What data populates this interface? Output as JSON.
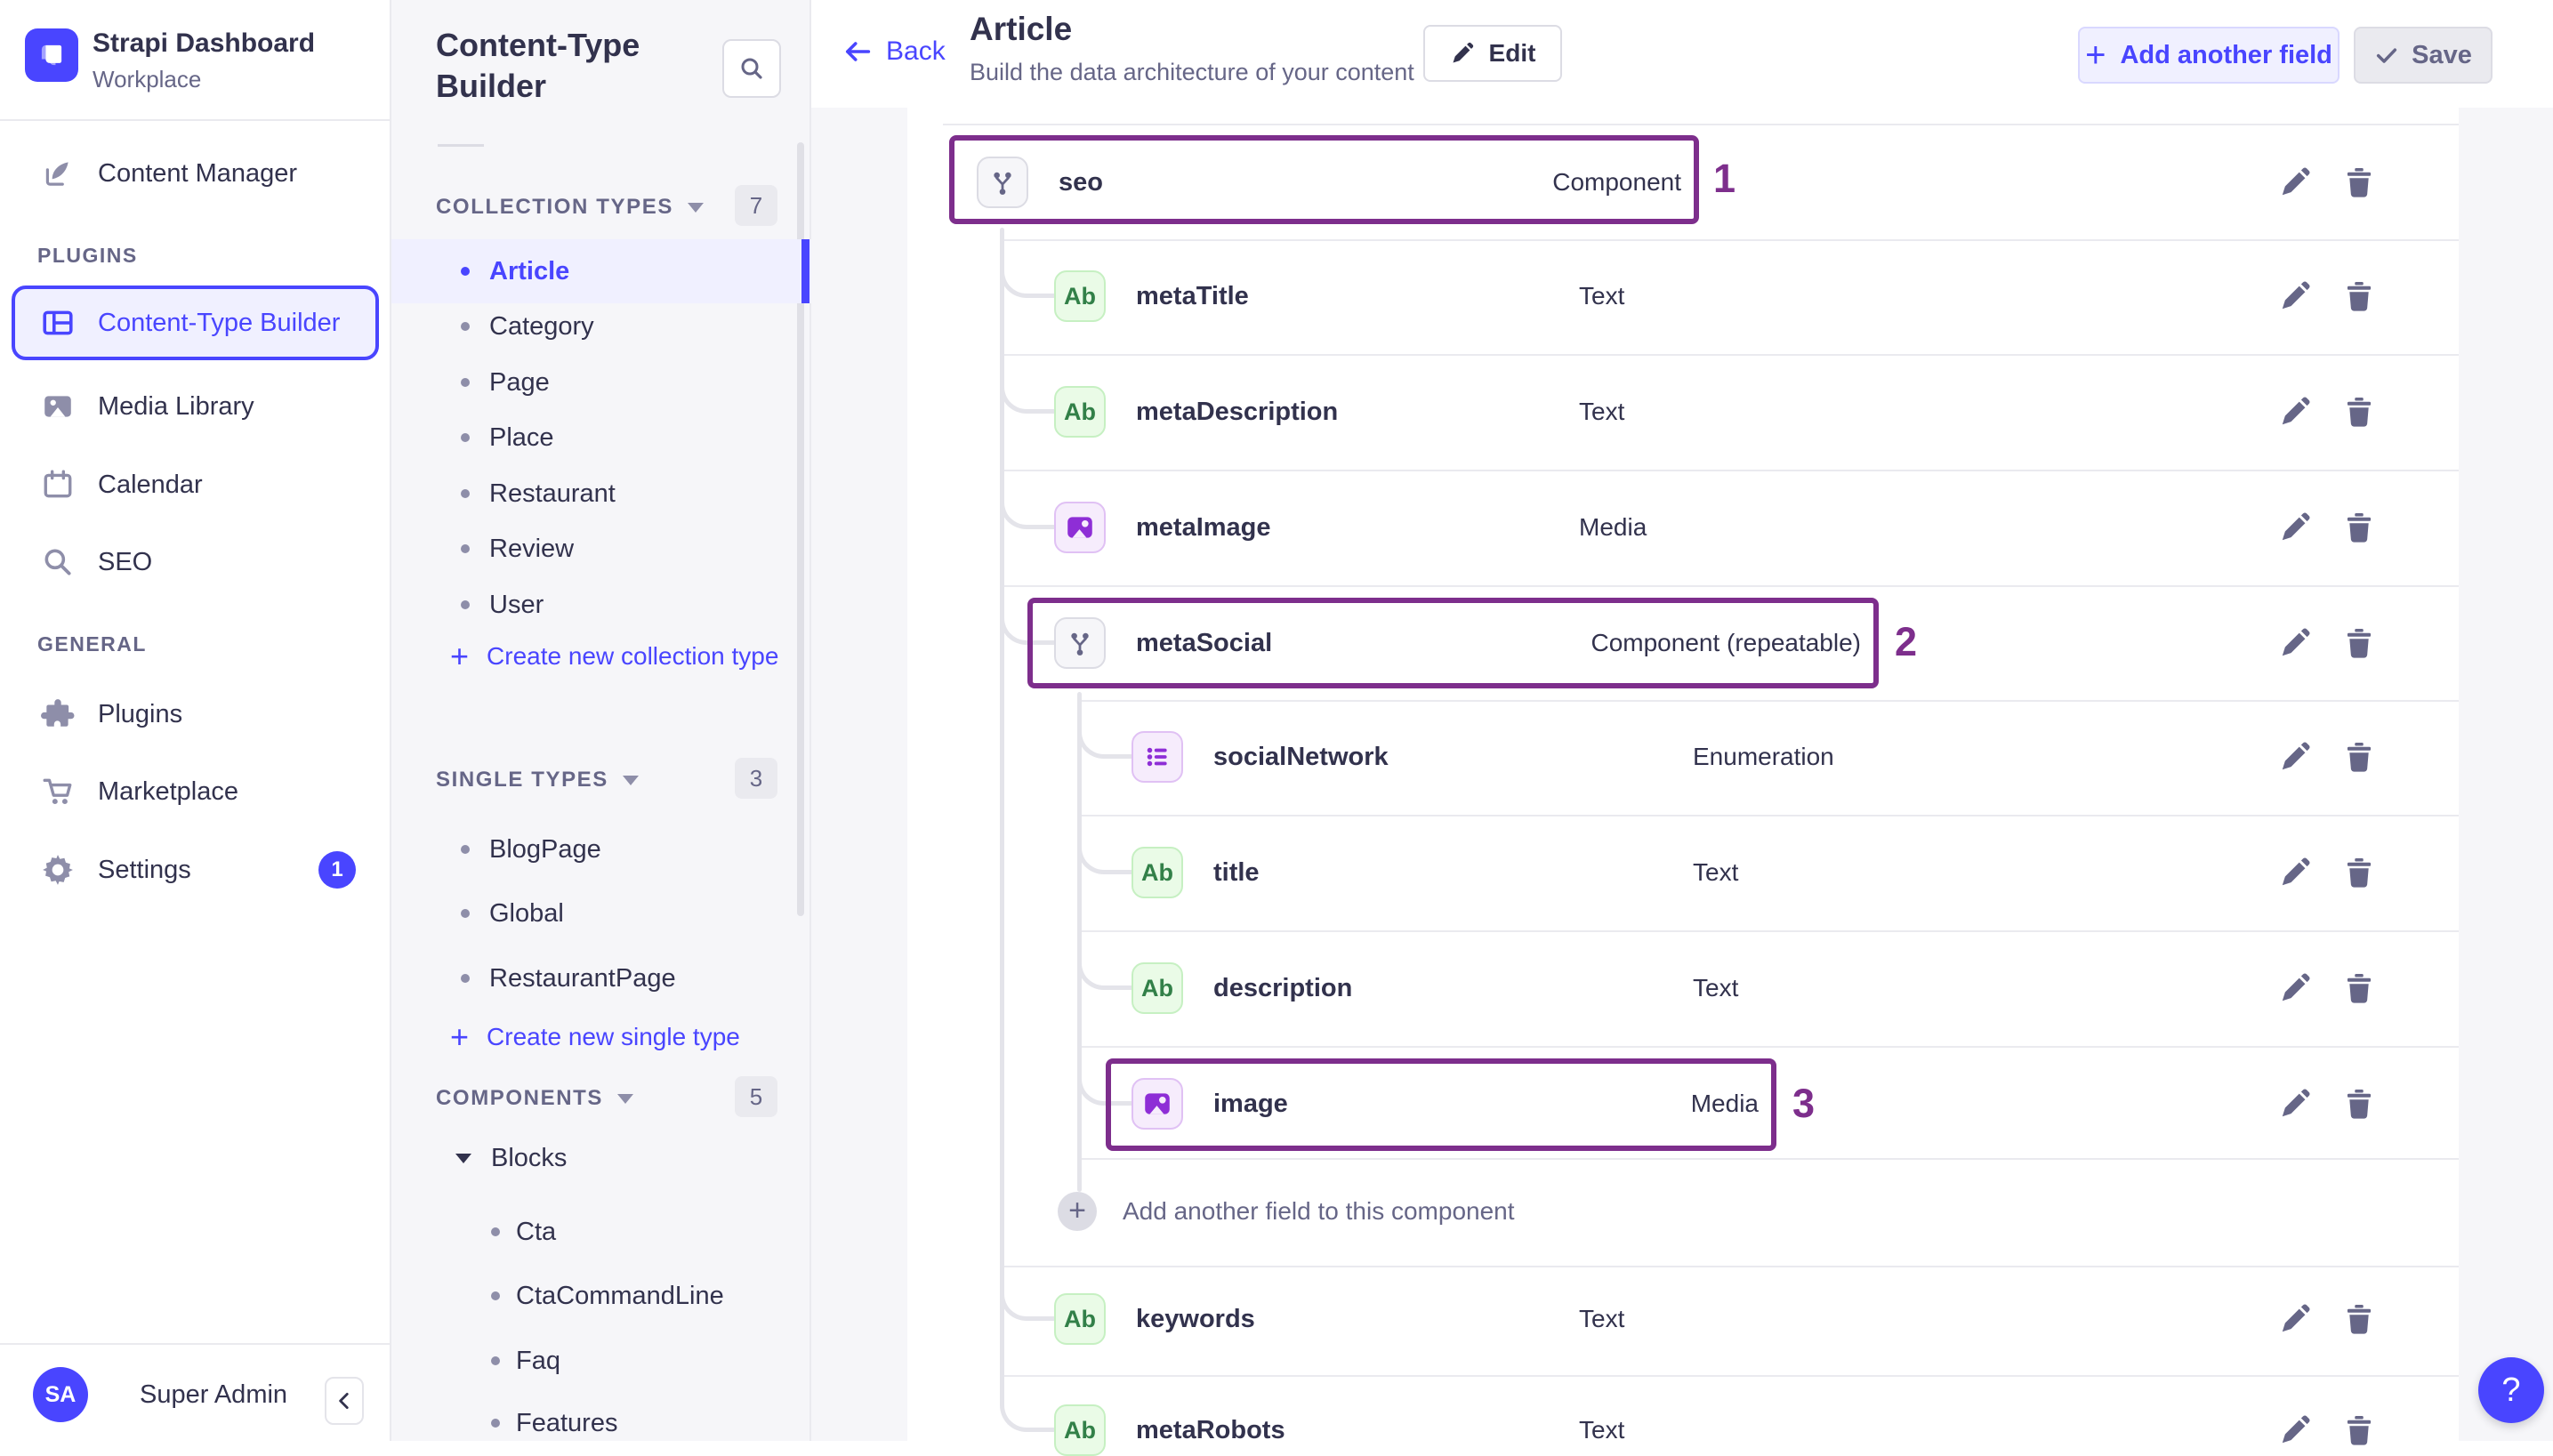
{
  "colors": {
    "accent": "#4945FF",
    "accent_bg": "#F0F0FF",
    "annotation": "#7D2E8C",
    "panel_bg": "#F6F6F9",
    "border": "#EAEAEF",
    "tree_line": "#E4E4EA",
    "text": "#32324D",
    "text_secondary": "#666687",
    "green_icon": "#328048",
    "purple_icon": "#8E2ED6"
  },
  "app": {
    "title": "Strapi Dashboard",
    "subtitle": "Workplace"
  },
  "sidebar": {
    "content_manager": "Content Manager",
    "plugins_header": "PLUGINS",
    "plugins": [
      {
        "label": "Content-Type Builder",
        "active": true
      },
      {
        "label": "Media Library"
      },
      {
        "label": "Calendar"
      },
      {
        "label": "SEO"
      }
    ],
    "general_header": "GENERAL",
    "general": [
      {
        "label": "Plugins"
      },
      {
        "label": "Marketplace"
      },
      {
        "label": "Settings",
        "badge": "1"
      }
    ],
    "user": {
      "initials": "SA",
      "name": "Super Admin"
    }
  },
  "panel": {
    "title": "Content-Type Builder",
    "collection": {
      "header": "COLLECTION TYPES",
      "count": "7",
      "items": [
        "Article",
        "Category",
        "Page",
        "Place",
        "Restaurant",
        "Review",
        "User"
      ],
      "active_index": 0,
      "create": "Create new collection type"
    },
    "single": {
      "header": "SINGLE TYPES",
      "count": "3",
      "items": [
        "BlogPage",
        "Global",
        "RestaurantPage"
      ],
      "create": "Create new single type"
    },
    "components": {
      "header": "COMPONENTS",
      "count": "5",
      "category": "Blocks",
      "items": [
        "Cta",
        "CtaCommandLine",
        "Faq",
        "Features"
      ]
    }
  },
  "header": {
    "back": "Back",
    "title": "Article",
    "subtitle": "Build the data architecture of your content",
    "edit": "Edit",
    "add_field": "Add another field",
    "save": "Save"
  },
  "fields": {
    "text_icon_label": "Ab",
    "add_component_field": "Add another field to this component",
    "rows": [
      {
        "name": "seo",
        "type": "Component",
        "icon": "component",
        "level": 0,
        "annotation": "1"
      },
      {
        "name": "metaTitle",
        "type": "Text",
        "icon": "text",
        "level": 1
      },
      {
        "name": "metaDescription",
        "type": "Text",
        "icon": "text",
        "level": 1
      },
      {
        "name": "metaImage",
        "type": "Media",
        "icon": "media",
        "level": 1
      },
      {
        "name": "metaSocial",
        "type": "Component (repeatable)",
        "icon": "component",
        "level": 1,
        "annotation": "2"
      },
      {
        "name": "socialNetwork",
        "type": "Enumeration",
        "icon": "enumeration",
        "level": 2
      },
      {
        "name": "title",
        "type": "Text",
        "icon": "text",
        "level": 2
      },
      {
        "name": "description",
        "type": "Text",
        "icon": "text",
        "level": 2
      },
      {
        "name": "image",
        "type": "Media",
        "icon": "media",
        "level": 2,
        "annotation": "3"
      },
      {
        "kind": "add",
        "level": 2
      },
      {
        "name": "keywords",
        "type": "Text",
        "icon": "text",
        "level": 1
      },
      {
        "name": "metaRobots",
        "type": "Text",
        "icon": "text",
        "level": 1
      }
    ]
  },
  "misc": {
    "plus": "+",
    "help": "?"
  }
}
